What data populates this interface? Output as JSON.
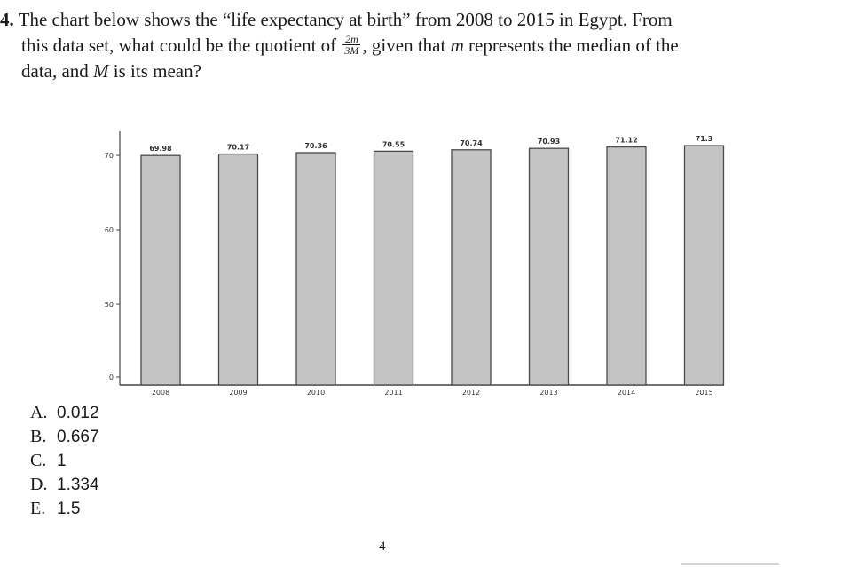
{
  "question": {
    "number": "4.",
    "line1_text": " The chart below shows the “life expectancy at birth” from 2008 to 2015 in Egypt. From",
    "line2_pre": "this data set, what could be the quotient of ",
    "frac_num": "2m",
    "frac_den": "3M",
    "line2_post1": ", given that ",
    "var_m": "m",
    "line2_post2": " represents the median of the",
    "line3_pre": "data, and ",
    "var_M": "M",
    "line3_post": " is its mean?"
  },
  "chart_data": {
    "type": "bar",
    "categories": [
      "2008",
      "2009",
      "2010",
      "2011",
      "2012",
      "2013",
      "2014",
      "2015"
    ],
    "values": [
      69.98,
      70.17,
      70.36,
      70.55,
      70.74,
      70.93,
      71.12,
      71.3
    ],
    "value_labels": [
      "69.98",
      "70.17",
      "70.36",
      "70.55",
      "70.74",
      "70.93",
      "71.12",
      "71.3"
    ],
    "yticks": [
      "0",
      "50",
      "60",
      "70"
    ],
    "axis_break": true,
    "title": "",
    "xlabel": "",
    "ylabel": "",
    "grid": false,
    "bar_color": "#c4c4c4"
  },
  "choices": [
    {
      "letter": "A.",
      "value": "0.012"
    },
    {
      "letter": "B.",
      "value": "0.667"
    },
    {
      "letter": "C.",
      "value": "1"
    },
    {
      "letter": "D.",
      "value": "1.334"
    },
    {
      "letter": "E.",
      "value": "1.5"
    }
  ],
  "page_number": "4"
}
